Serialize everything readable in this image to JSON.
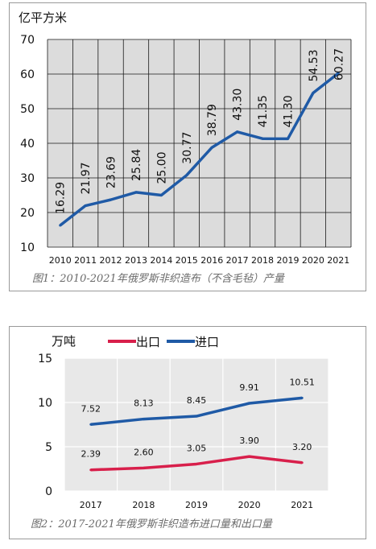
{
  "figure1": {
    "caption": "图1：2010-2021年俄罗斯非织造布（不含毛毡）产量",
    "chart_data": {
      "type": "line",
      "ylabel": "亿平方米",
      "ylim": [
        10,
        70
      ],
      "yticks": [
        10,
        20,
        30,
        40,
        50,
        60,
        70
      ],
      "categories": [
        "2010",
        "2011",
        "2012",
        "2013",
        "2014",
        "2015",
        "2016",
        "2017",
        "2018",
        "2019",
        "2020",
        "2021"
      ],
      "series": [
        {
          "values": [
            16.29,
            21.97,
            23.69,
            25.84,
            25.0,
            30.77,
            38.79,
            43.3,
            41.35,
            41.3,
            54.53,
            60.27
          ],
          "labels": [
            "16.29",
            "21.97",
            "23.69",
            "25.84",
            "25.00",
            "30.77",
            "38.79",
            "43.30",
            "41.35",
            "41.30",
            "54.53",
            "60.27"
          ],
          "color": "#1f5aa6"
        }
      ],
      "grid": true,
      "background": "#dcdcdc"
    }
  },
  "figure2": {
    "caption": "图2：2017-2021年俄罗斯非织造布进口量和出口量",
    "chart_data": {
      "type": "line",
      "ylabel": "万吨",
      "ylim": [
        0,
        15
      ],
      "yticks": [
        0,
        5,
        10,
        15
      ],
      "categories": [
        "2017",
        "2018",
        "2019",
        "2020",
        "2021"
      ],
      "series": [
        {
          "name": "出口",
          "values": [
            2.39,
            2.6,
            3.05,
            3.9,
            3.2
          ],
          "labels": [
            "2.39",
            "2.60",
            "3.05",
            "3.90",
            "3.20"
          ],
          "color": "#d81f4b"
        },
        {
          "name": "进口",
          "values": [
            7.52,
            8.13,
            8.45,
            9.91,
            10.51
          ],
          "labels": [
            "7.52",
            "8.13",
            "8.45",
            "9.91",
            "10.51"
          ],
          "color": "#1f5aa6"
        }
      ],
      "legend": "top",
      "grid": true,
      "background": "#e8e8e8"
    }
  }
}
